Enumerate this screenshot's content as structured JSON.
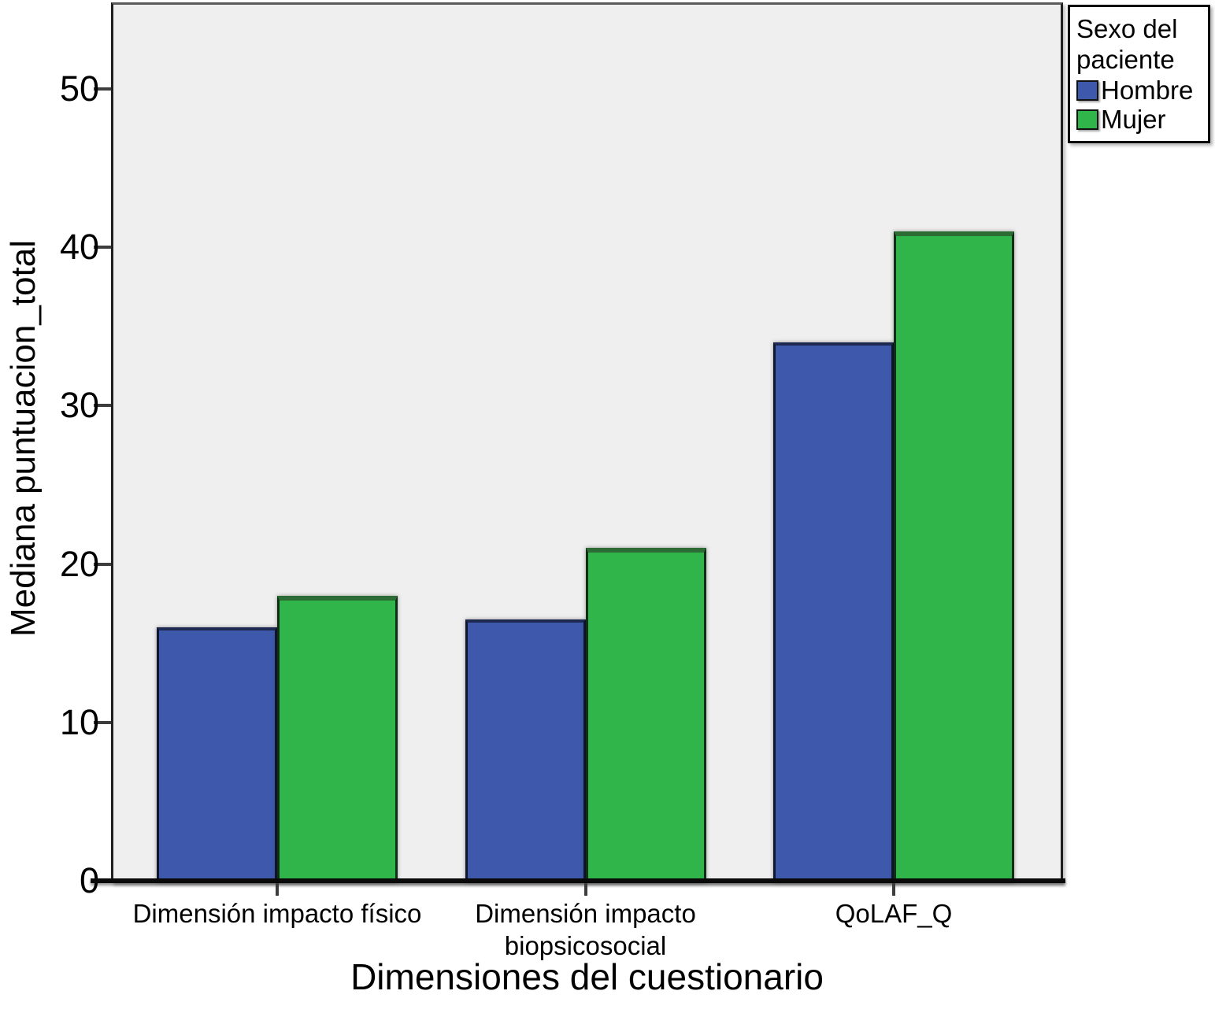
{
  "figure": {
    "background": "#FFFFFF",
    "plot_background": "#EFEFEF"
  },
  "chart_data": {
    "type": "bar",
    "title": "",
    "xlabel": "Dimensiones del cuestionario",
    "ylabel": "Mediana puntuacion_total",
    "categories": [
      "Dimensión impacto físico",
      "Dimensión impacto biopsicosocial",
      "QoLAF_Q"
    ],
    "series": [
      {
        "name": "Hombre",
        "color": "#3E59AB",
        "values": [
          16,
          16.5,
          34
        ]
      },
      {
        "name": "Mujer",
        "color": "#2FB54A",
        "values": [
          18,
          21,
          41
        ]
      }
    ],
    "y_axis": {
      "min": 0,
      "max": 55.4,
      "ticks": [
        0,
        10,
        20,
        30,
        40,
        50
      ]
    },
    "x_axis": {
      "tick_per_category": true
    },
    "legend": {
      "title": "Sexo del paciente",
      "position": "top-right"
    },
    "grid": false
  }
}
